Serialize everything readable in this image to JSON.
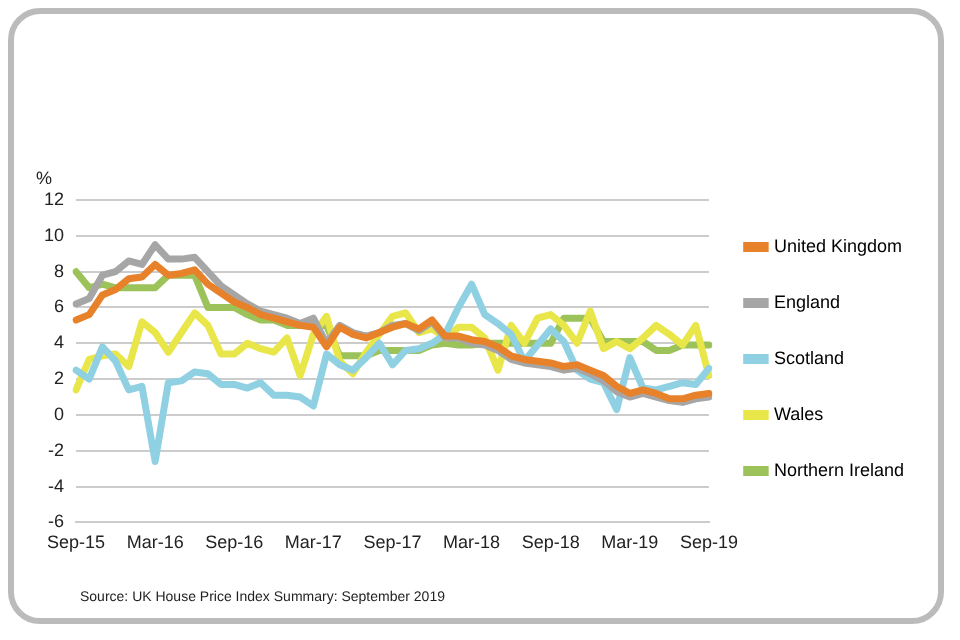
{
  "chart_data": {
    "type": "line",
    "ylabel": "%",
    "legend": "right",
    "grid": "y",
    "marker": "none",
    "line_style": "solid",
    "categories": [
      "Sep-15",
      null,
      null,
      null,
      null,
      null,
      "Mar-16",
      null,
      null,
      null,
      null,
      null,
      "Sep-16",
      null,
      null,
      null,
      null,
      null,
      "Mar-17",
      null,
      null,
      null,
      null,
      null,
      "Sep-17",
      null,
      null,
      null,
      null,
      null,
      "Mar-18",
      null,
      null,
      null,
      null,
      null,
      "Sep-18",
      null,
      null,
      null,
      null,
      null,
      "Mar-19",
      null,
      null,
      null,
      null,
      null,
      "Sep-19"
    ],
    "ylim": [
      -6,
      12
    ],
    "yticks": [
      -6,
      -4,
      -2,
      0,
      2,
      4,
      6,
      8,
      10,
      12
    ],
    "series": [
      {
        "name": "United Kingdom",
        "color": "#e8822a",
        "values": [
          5.3,
          5.6,
          6.7,
          7.0,
          7.6,
          7.7,
          8.4,
          7.8,
          7.9,
          8.1,
          7.3,
          6.8,
          6.3,
          6.0,
          5.6,
          5.4,
          5.2,
          5.0,
          4.9,
          3.8,
          4.9,
          4.5,
          4.3,
          4.6,
          4.9,
          5.1,
          4.8,
          5.3,
          4.4,
          4.4,
          4.2,
          4.1,
          3.8,
          3.3,
          3.1,
          3.0,
          2.9,
          2.7,
          2.8,
          2.5,
          2.2,
          1.6,
          1.2,
          1.4,
          1.2,
          0.9,
          0.9,
          1.1,
          1.2
        ]
      },
      {
        "name": "England",
        "color": "#a6a6a6",
        "values": [
          6.2,
          6.5,
          7.8,
          8.0,
          8.6,
          8.4,
          9.5,
          8.7,
          8.7,
          8.8,
          8.0,
          7.2,
          6.7,
          6.2,
          5.8,
          5.6,
          5.4,
          5.1,
          5.4,
          4.0,
          5.0,
          4.6,
          4.4,
          4.6,
          5.0,
          5.1,
          4.7,
          5.2,
          4.3,
          4.3,
          4.0,
          3.9,
          3.6,
          3.1,
          2.9,
          2.8,
          2.7,
          2.5,
          2.6,
          2.3,
          1.9,
          1.3,
          1.0,
          1.2,
          1.0,
          0.8,
          0.7,
          0.9,
          1.0
        ]
      },
      {
        "name": "Scotland",
        "color": "#8fd0e3",
        "values": [
          2.5,
          2.0,
          3.8,
          3.0,
          1.4,
          1.6,
          -2.6,
          1.8,
          1.9,
          2.4,
          2.3,
          1.7,
          1.7,
          1.5,
          1.8,
          1.1,
          1.1,
          1.0,
          0.5,
          3.4,
          2.8,
          2.5,
          3.2,
          4.0,
          2.8,
          3.6,
          3.7,
          4.0,
          4.5,
          6.0,
          7.3,
          5.6,
          5.1,
          4.5,
          3.0,
          3.9,
          4.8,
          4.1,
          2.5,
          2.0,
          1.8,
          0.3,
          3.2,
          1.5,
          1.4,
          1.6,
          1.8,
          1.7,
          2.6
        ]
      },
      {
        "name": "Wales",
        "color": "#e9e64a",
        "values": [
          1.4,
          3.1,
          3.3,
          3.4,
          2.7,
          5.2,
          4.6,
          3.5,
          4.6,
          5.7,
          5.0,
          3.4,
          3.4,
          4.0,
          3.7,
          3.5,
          4.3,
          2.2,
          4.5,
          5.5,
          3.0,
          2.3,
          3.5,
          4.5,
          5.5,
          5.7,
          4.6,
          4.8,
          4.3,
          4.9,
          4.9,
          4.3,
          2.5,
          5.0,
          4.0,
          5.4,
          5.6,
          5.0,
          4.0,
          5.8,
          3.7,
          4.1,
          3.7,
          4.3,
          5.0,
          4.5,
          3.9,
          5.0,
          2.2
        ]
      },
      {
        "name": "Northern Ireland",
        "color": "#9cc25a",
        "values": [
          8.0,
          7.1,
          7.3,
          7.1,
          7.1,
          7.1,
          7.1,
          7.8,
          7.8,
          7.8,
          6.0,
          6.0,
          6.0,
          5.6,
          5.3,
          5.3,
          5.0,
          5.0,
          5.0,
          5.0,
          3.3,
          3.3,
          3.3,
          3.6,
          3.6,
          3.6,
          3.6,
          3.9,
          4.0,
          3.9,
          3.9,
          4.0,
          4.0,
          4.0,
          4.0,
          4.0,
          4.0,
          5.4,
          5.4,
          5.4,
          4.1,
          4.1,
          4.1,
          4.1,
          3.6,
          3.6,
          3.9,
          3.9,
          3.9
        ]
      }
    ],
    "annotations": [
      "Source: UK House Price Index Summary: September 2019"
    ]
  }
}
